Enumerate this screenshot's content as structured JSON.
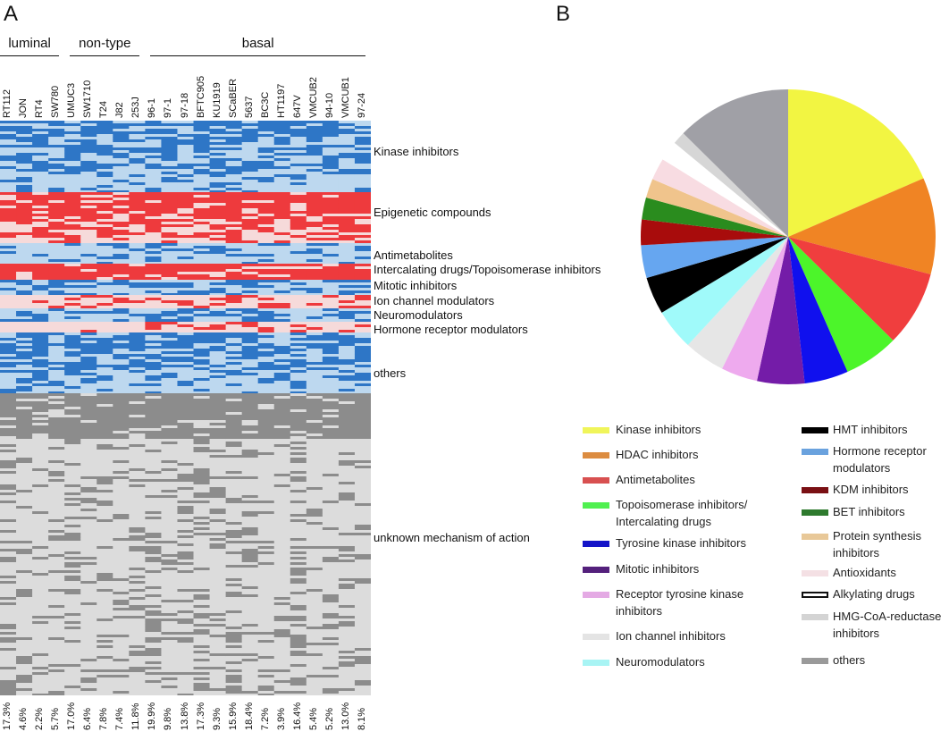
{
  "panels": {
    "a": "A",
    "b": "B"
  },
  "chart_data": [
    {
      "type": "heatmap",
      "groups": [
        {
          "label": "luminal",
          "columns": [
            "RT112",
            "JON",
            "RT4",
            "SW780"
          ]
        },
        {
          "label": "non-type",
          "columns": [
            "UMUC3",
            "SW1710",
            "T24",
            "J82",
            "253J"
          ]
        },
        {
          "label": "basal",
          "columns": [
            "96-1",
            "97-1",
            "97-18",
            "BFTC905",
            "KU1919",
            "SCaBER",
            "5637",
            "BC3C",
            "HT1197",
            "647V",
            "VMCUB2",
            "94-10",
            "VMCUB1",
            "97-24"
          ]
        }
      ],
      "columns": [
        "RT112",
        "JON",
        "RT4",
        "SW780",
        "UMUC3",
        "SW1710",
        "T24",
        "J82",
        "253J",
        "96-1",
        "97-1",
        "97-18",
        "BFTC905",
        "KU1919",
        "SCaBER",
        "5637",
        "BC3C",
        "HT1197",
        "647V",
        "VMCUB2",
        "94-10",
        "VMCUB1",
        "97-24"
      ],
      "column_percentages": [
        "17.3%",
        "4.6%",
        "2.2%",
        "5.7%",
        "17.0%",
        "6.4%",
        "7.8%",
        "7.4%",
        "11.8%",
        "19.9%",
        "9.8%",
        "13.8%",
        "17.3%",
        "9.3%",
        "15.9%",
        "18.4%",
        "7.2%",
        "3.9%",
        "16.4%",
        "5.4%",
        "5.2%",
        "13.0%",
        "8.1%"
      ],
      "row_groups": [
        "Kinase inhibitors",
        "Epigenetic compounds",
        "Antimetabolites",
        "Intercalating drugs/Topoisomerase inhibitors",
        "Mitotic inhibitors",
        "Ion channel modulators",
        "Neuromodulators",
        "Hormone receptor modulators",
        "others",
        "unknown mechanism of action"
      ],
      "colors": {
        "blue_hit": "#2e76c6",
        "blue_bg": "#bdd8ef",
        "red_hit": "#ee3a3d",
        "red_bg": "#f6dada",
        "gray_hit": "#8c8c8c",
        "gray_bg": "#dcdcdc"
      }
    },
    {
      "type": "pie",
      "start": "top, clockwise",
      "slices": [
        {
          "label": "Kinase inhibitors",
          "value": 18.5,
          "color": "#f2f542"
        },
        {
          "label": "HDAC inhibitors",
          "value": 10.6,
          "color": "#f08424"
        },
        {
          "label": "Antimetabolites",
          "value": 8.3,
          "color": "#f03e3e"
        },
        {
          "label": "Topoisomerase inhibitors/ Intercalating drugs",
          "value": 6.0,
          "color": "#4cf52a"
        },
        {
          "label": "Tyrosine kinase inhibitors",
          "value": 4.8,
          "color": "#1010ee"
        },
        {
          "label": "Mitotic inhibitors",
          "value": 5.2,
          "color": "#741ca8"
        },
        {
          "label": "Receptor tyrosine kinase inhibitors",
          "value": 4.0,
          "color": "#eeaaee"
        },
        {
          "label": "Ion channel inhibitors",
          "value": 4.5,
          "color": "#e6e6e6"
        },
        {
          "label": "Neuromodulators",
          "value": 4.5,
          "color": "#a0fafa"
        },
        {
          "label": "HMT inhibitors",
          "value": 4.1,
          "color": "#000000"
        },
        {
          "label": "Hormone receptor modulators",
          "value": 3.6,
          "color": "#66a6f0"
        },
        {
          "label": "KDM inhibitors",
          "value": 2.8,
          "color": "#a80c0c"
        },
        {
          "label": "BET inhibitors",
          "value": 2.4,
          "color": "#2a8c1e"
        },
        {
          "label": "Protein synthesis inhibitors",
          "value": 2.1,
          "color": "#f0c48c"
        },
        {
          "label": "Antioxidants",
          "value": 2.4,
          "color": "#f8dce2"
        },
        {
          "label": "Alkylating drugs",
          "value": 2.2,
          "color": "#ffffff"
        },
        {
          "label": "HMG-CoA-reductase inhibitors",
          "value": 1.4,
          "color": "#d6d6d6"
        },
        {
          "label": "others",
          "value": 12.6,
          "color": "#a0a0a6"
        }
      ]
    }
  ],
  "legend": {
    "left": [
      {
        "label": "Kinase inhibitors",
        "color": "#f0f55a"
      },
      {
        "label": "HDAC inhibitors",
        "color": "#dc8c40"
      },
      {
        "label": "Antimetabolites",
        "color": "#d85050"
      },
      {
        "label": "Topoisomerase inhibitors/ Intercalating drugs",
        "color": "#50f050"
      },
      {
        "label": "Tyrosine kinase inhibitors",
        "color": "#1414c8"
      },
      {
        "label": "Mitotic inhibitors",
        "color": "#54207c"
      },
      {
        "label": "Receptor tyrosine kinase inhibitors",
        "color": "#e4aae4"
      },
      {
        "label": "Ion channel inhibitors",
        "color": "#e4e4e4"
      },
      {
        "label": "Neuromodulators",
        "color": "#a8f4f4"
      }
    ],
    "right": [
      {
        "label": "HMT inhibitors",
        "color": "#000000"
      },
      {
        "label": "Hormone receptor modulators",
        "color": "#6aa2de"
      },
      {
        "label": "KDM inhibitors",
        "color": "#7a1014"
      },
      {
        "label": "BET inhibitors",
        "color": "#2e7a2e"
      },
      {
        "label": "Protein synthesis inhibitors",
        "color": "#e8c898"
      },
      {
        "label": "Antioxidants",
        "color": "#f4e0e4"
      },
      {
        "label": "Alkylating drugs",
        "color": "#ffffff"
      },
      {
        "label": "HMG-CoA-reductase inhibitors",
        "color": "#d4d4d4"
      },
      {
        "label": "others",
        "color": "#9a9a9a"
      }
    ]
  }
}
